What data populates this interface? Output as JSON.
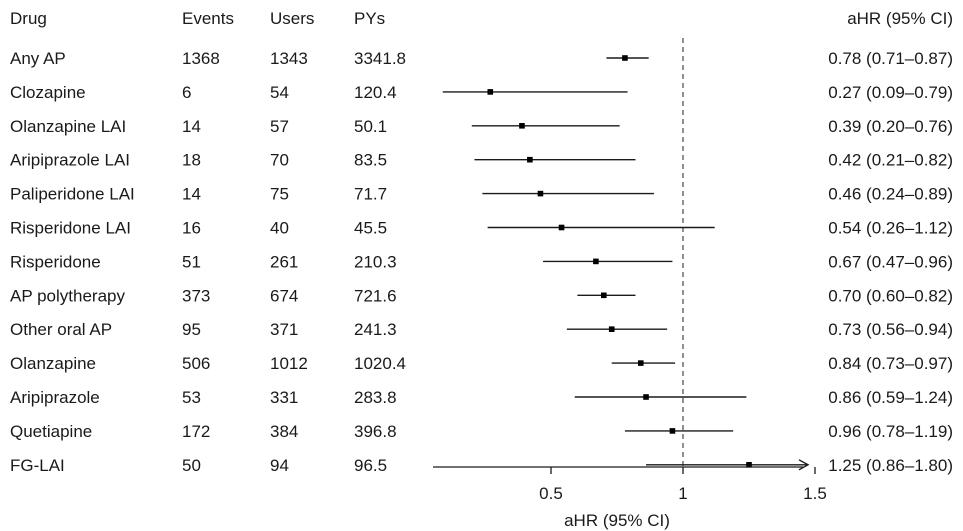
{
  "chart_data": {
    "type": "forest",
    "columns": {
      "drug": "Drug",
      "events": "Events",
      "users": "Users",
      "pys": "PYs",
      "ahr": "aHR (95% CI)"
    },
    "xlabel": "aHR (95% CI)",
    "xlim": [
      0.0,
      1.5
    ],
    "xticks": [
      "0.5",
      "1",
      "1.5"
    ],
    "xtick_values": [
      0.5,
      1.0,
      1.5
    ],
    "reference_line": 1.0,
    "rows": [
      {
        "drug": "Any AP",
        "events": "1368",
        "users": "1343",
        "pys": "3341.8",
        "ahr": 0.78,
        "lo": 0.71,
        "hi": 0.87,
        "ci_text": "0.78 (0.71–0.87)"
      },
      {
        "drug": "Clozapine",
        "events": "6",
        "users": "54",
        "pys": "120.4",
        "ahr": 0.27,
        "lo": 0.09,
        "hi": 0.79,
        "ci_text": "0.27 (0.09–0.79)"
      },
      {
        "drug": "Olanzapine LAI",
        "events": "14",
        "users": "57",
        "pys": "50.1",
        "ahr": 0.39,
        "lo": 0.2,
        "hi": 0.76,
        "ci_text": "0.39 (0.20–0.76)"
      },
      {
        "drug": "Aripiprazole LAI",
        "events": "18",
        "users": "70",
        "pys": "83.5",
        "ahr": 0.42,
        "lo": 0.21,
        "hi": 0.82,
        "ci_text": "0.42 (0.21–0.82)"
      },
      {
        "drug": "Paliperidone LAI",
        "events": "14",
        "users": "75",
        "pys": "71.7",
        "ahr": 0.46,
        "lo": 0.24,
        "hi": 0.89,
        "ci_text": "0.46 (0.24–0.89)"
      },
      {
        "drug": "Risperidone LAI",
        "events": "16",
        "users": "40",
        "pys": "45.5",
        "ahr": 0.54,
        "lo": 0.26,
        "hi": 1.12,
        "ci_text": "0.54 (0.26–1.12)"
      },
      {
        "drug": "Risperidone",
        "events": "51",
        "users": "261",
        "pys": "210.3",
        "ahr": 0.67,
        "lo": 0.47,
        "hi": 0.96,
        "ci_text": "0.67 (0.47–0.96)"
      },
      {
        "drug": "AP polytherapy",
        "events": "373",
        "users": "674",
        "pys": "721.6",
        "ahr": 0.7,
        "lo": 0.6,
        "hi": 0.82,
        "ci_text": "0.70 (0.60–0.82)"
      },
      {
        "drug": "Other oral AP",
        "events": "95",
        "users": "371",
        "pys": "241.3",
        "ahr": 0.73,
        "lo": 0.56,
        "hi": 0.94,
        "ci_text": "0.73 (0.56–0.94)"
      },
      {
        "drug": "Olanzapine",
        "events": "506",
        "users": "1012",
        "pys": "1020.4",
        "ahr": 0.84,
        "lo": 0.73,
        "hi": 0.97,
        "ci_text": "0.84 (0.73–0.97)"
      },
      {
        "drug": "Aripiprazole",
        "events": "53",
        "users": "331",
        "pys": "283.8",
        "ahr": 0.86,
        "lo": 0.59,
        "hi": 1.24,
        "ci_text": "0.86 (0.59–1.24)"
      },
      {
        "drug": "Quetiapine",
        "events": "172",
        "users": "384",
        "pys": "396.8",
        "ahr": 0.96,
        "lo": 0.78,
        "hi": 1.19,
        "ci_text": "0.96 (0.78–1.19)"
      },
      {
        "drug": "FG-LAI",
        "events": "50",
        "users": "94",
        "pys": "96.5",
        "ahr": 1.25,
        "lo": 0.86,
        "hi": 1.8,
        "ci_text": "1.25 (0.86–1.80)",
        "hi_truncated": true
      }
    ]
  }
}
